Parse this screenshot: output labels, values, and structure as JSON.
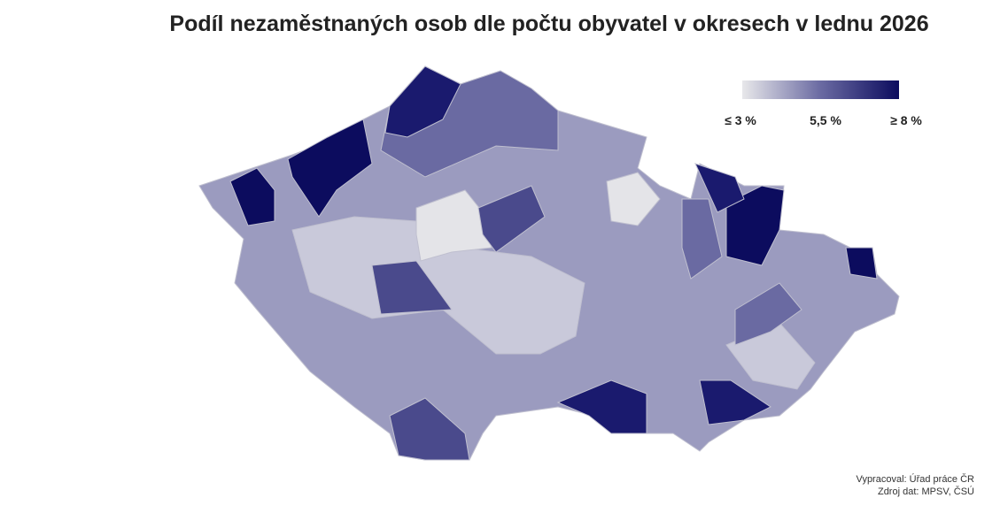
{
  "title": "Podíl nezaměstnaných osob dle počtu obyvatel v okresech v lednu 2026",
  "legend": {
    "colors": [
      "#e8e8ea",
      "#6a6aa2",
      "#0c0c5e"
    ],
    "labels": [
      "≤ 3 %",
      "5,5 %",
      "≥ 8 %"
    ]
  },
  "source": [
    "Vypracoval: Úřad práce ČR",
    "Zdroj dat: MPSV, ČSÚ"
  ]
}
